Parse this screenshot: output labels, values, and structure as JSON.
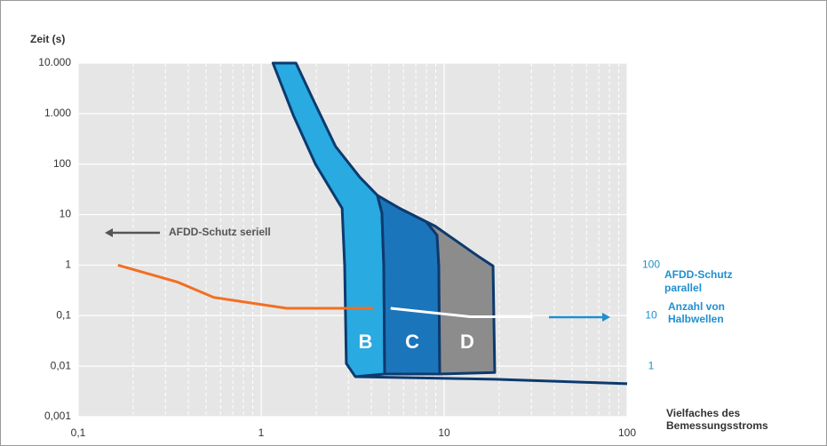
{
  "chart_data": {
    "type": "line",
    "y_label": "Zeit (s)",
    "x_label": [
      "Vielfaches des",
      "Bemessungsstroms"
    ],
    "log_x": true,
    "log_y": true,
    "grid": true,
    "xlim": [
      0.1,
      100
    ],
    "ylim": [
      0.001,
      10000
    ],
    "y2lim": [
      0.1,
      1000000
    ],
    "xticks": [
      {
        "value": 0.1,
        "label": "0,1"
      },
      1,
      10,
      100
    ],
    "yticks": [
      {
        "value": 10000,
        "label": "10.000"
      },
      {
        "value": 1000,
        "label": "1.000"
      },
      100,
      10,
      1,
      {
        "value": 0.1,
        "label": "0,1"
      },
      {
        "value": 0.01,
        "label": "0,01"
      },
      {
        "value": 0.001,
        "label": "0,001"
      }
    ],
    "y2ticks": [
      100,
      10,
      1
    ],
    "y2_color": "#1f8fd0",
    "series": [
      {
        "color": "#f26f21",
        "x": [
          0.165,
          0.35,
          0.55,
          1.38,
          4.1
        ],
        "values": [
          1,
          0.46,
          0.23,
          0.14,
          0.14
        ]
      },
      {
        "color": "#ffffff",
        "x": [
          5.1,
          13.9,
          30.5
        ],
        "values": [
          0.14,
          0.095,
          0.095
        ]
      }
    ],
    "regions": [
      {
        "name": "B",
        "color": "#29aae1",
        "x": [
          1.16,
          1.55,
          1.9,
          2.55,
          3.46,
          4.32,
          4.57,
          4.68,
          4.73,
          3.27,
          2.92,
          2.86,
          2.77,
          1.98,
          1.5
        ],
        "values": [
          10000,
          10000,
          2070,
          224,
          55,
          24,
          10.8,
          0.96,
          0.007,
          0.0062,
          0.0113,
          0.96,
          13.3,
          100,
          920
        ]
      },
      {
        "name": "C",
        "color": "#1b75bb",
        "x": [
          4.32,
          5.72,
          8.0,
          9.15,
          9.35,
          9.46,
          4.73,
          4.68,
          4.57
        ],
        "values": [
          24,
          13.3,
          7.2,
          3.9,
          0.96,
          0.007,
          0.007,
          0.96,
          10.8
        ]
      },
      {
        "name": "D",
        "color": "#8c8c8c",
        "x": [
          5.72,
          8.94,
          15.6,
          18.5,
          18.9,
          9.46,
          9.35,
          9.15,
          8.0
        ],
        "values": [
          13.3,
          5.9,
          1.44,
          0.96,
          0.0075,
          0.007,
          0.96,
          3.9,
          7.2
        ]
      }
    ],
    "tail": {
      "color": "#0d3a6e",
      "x": [
        3.27,
        18.9,
        100
      ],
      "values": [
        0.0062,
        0.0055,
        0.0045
      ]
    },
    "annotations": {
      "serial": "AFDD-Schutz seriell",
      "parallel": [
        "AFDD-Schutz",
        "parallel"
      ],
      "y2_label": [
        "Anzahl von",
        "Halbwellen"
      ]
    }
  }
}
